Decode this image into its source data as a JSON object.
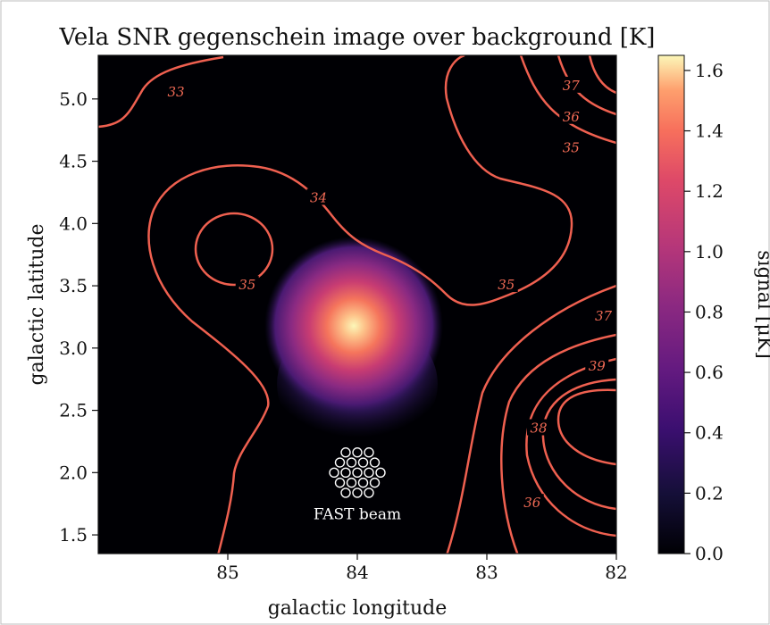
{
  "chart_data": {
    "type": "heatmap",
    "title": "Vela SNR gegenschein image over background [K]",
    "xlabel": "galactic longitude",
    "ylabel": "galactic latitude",
    "xlim": [
      86.0,
      82.0
    ],
    "ylim": [
      1.35,
      5.35
    ],
    "x_ticks": [
      {
        "v": 85,
        "label": "85"
      },
      {
        "v": 84,
        "label": "84"
      },
      {
        "v": 83,
        "label": "83"
      },
      {
        "v": 82,
        "label": "82"
      }
    ],
    "y_ticks": [
      {
        "v": 1.5,
        "label": "1.5"
      },
      {
        "v": 2.0,
        "label": "2.0"
      },
      {
        "v": 2.5,
        "label": "2.5"
      },
      {
        "v": 3.0,
        "label": "3.0"
      },
      {
        "v": 3.5,
        "label": "3.5"
      },
      {
        "v": 4.0,
        "label": "4.0"
      },
      {
        "v": 4.5,
        "label": "4.5"
      },
      {
        "v": 5.0,
        "label": "5.0"
      }
    ],
    "colorbar": {
      "label": "signal [μK]",
      "range": [
        0.0,
        1.65
      ],
      "ticks": [
        {
          "v": 0.0,
          "label": "0.0"
        },
        {
          "v": 0.2,
          "label": "0.2"
        },
        {
          "v": 0.4,
          "label": "0.4"
        },
        {
          "v": 0.6,
          "label": "0.6"
        },
        {
          "v": 0.8,
          "label": "0.8"
        },
        {
          "v": 1.0,
          "label": "1.0"
        },
        {
          "v": 1.2,
          "label": "1.2"
        },
        {
          "v": 1.4,
          "label": "1.4"
        },
        {
          "v": 1.6,
          "label": "1.6"
        }
      ],
      "colormap": "magma"
    },
    "signal_blob": {
      "peak": 1.6,
      "center_l": 84.0,
      "center_b": 3.3
    },
    "contour_labels": [
      {
        "label": "33",
        "l": 85.4,
        "b": 5.05
      },
      {
        "label": "34",
        "l": 84.3,
        "b": 4.2
      },
      {
        "label": "35",
        "l": 84.85,
        "b": 3.5
      },
      {
        "label": "37",
        "l": 82.35,
        "b": 5.1
      },
      {
        "label": "36",
        "l": 82.35,
        "b": 4.85
      },
      {
        "label": "35",
        "l": 82.35,
        "b": 4.6
      },
      {
        "label": "35",
        "l": 82.85,
        "b": 3.5
      },
      {
        "label": "37",
        "l": 82.1,
        "b": 3.25
      },
      {
        "label": "39",
        "l": 82.15,
        "b": 2.85
      },
      {
        "label": "38",
        "l": 82.6,
        "b": 2.35
      },
      {
        "label": "36",
        "l": 82.65,
        "b": 1.75
      }
    ],
    "annotation": "FAST beam",
    "beam_center": {
      "l": 84.0,
      "b": 2.0
    }
  }
}
